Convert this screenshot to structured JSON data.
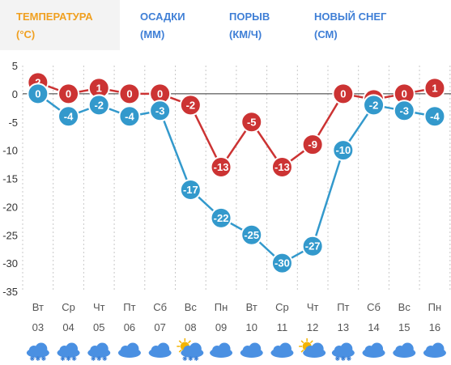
{
  "tabs": [
    {
      "title": "ТЕМПЕРАТУРА",
      "unit": "(°C)",
      "active": true
    },
    {
      "title": "ОСАДКИ",
      "unit": "(ММ)",
      "active": false
    },
    {
      "title": "ПОРЫВ",
      "unit": "(КМ/Ч)",
      "active": false
    },
    {
      "title": "НОВЫЙ СНЕГ",
      "unit": "(СМ)",
      "active": false
    }
  ],
  "colors": {
    "active_tab": "#f0a020",
    "tab": "#3f7fd6",
    "series_max": "#cc3333",
    "series_min": "#3399cc"
  },
  "chart_data": {
    "type": "line",
    "categories": [
      "Вт",
      "Ср",
      "Чт",
      "Пт",
      "Сб",
      "Вс",
      "Пн",
      "Вт",
      "Ср",
      "Чт",
      "Пт",
      "Сб",
      "Вс",
      "Пн"
    ],
    "dates": [
      "03",
      "04",
      "05",
      "06",
      "07",
      "08",
      "09",
      "10",
      "11",
      "12",
      "13",
      "14",
      "15",
      "16"
    ],
    "ylim": [
      -35,
      5
    ],
    "yticks": [
      5,
      0,
      -5,
      -10,
      -15,
      -20,
      -25,
      -30,
      -35
    ],
    "grid": "vertical",
    "series": [
      {
        "values": [
          2,
          0,
          1,
          0,
          0,
          -2,
          -13,
          -5,
          -13,
          -9,
          0,
          -1,
          0,
          1
        ],
        "color": "#cc3333"
      },
      {
        "values": [
          0,
          -4,
          -2,
          -4,
          -3,
          -17,
          -22,
          -25,
          -30,
          -27,
          -10,
          -2,
          -3,
          -4
        ],
        "color": "#3399cc"
      }
    ],
    "icons": [
      "cloud-snow-icon",
      "cloud-snow-icon",
      "cloud-snow-icon",
      "cloud-icon",
      "cloud-icon",
      "sun-cloud-snow-icon",
      "cloud-icon",
      "cloud-icon",
      "cloud-icon",
      "sun-cloud-icon",
      "cloud-snow-icon",
      "cloud-icon",
      "cloud-icon",
      "cloud-icon"
    ]
  }
}
